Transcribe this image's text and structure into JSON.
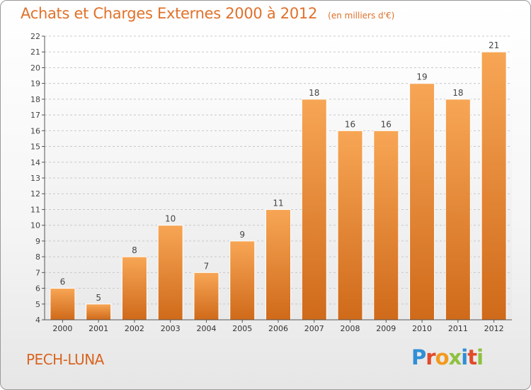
{
  "title": "Achats et Charges Externes 2000 à 2012",
  "unit": "(en milliers d'€)",
  "commune": "PECH-LUNA",
  "logo": {
    "letters": [
      "P",
      "r",
      "o",
      "x",
      "i",
      "t",
      "i"
    ],
    "colors": [
      "#2f8fd6",
      "#e24a2a",
      "#f39a1e",
      "#8ec13f",
      "#2f8fd6",
      "#e24a2a",
      "#8ec13f"
    ]
  },
  "colors": {
    "accent": "#e0712a",
    "bar_light": "#f7a655",
    "bar_dark": "#cf6a1a"
  },
  "chart_data": {
    "type": "bar",
    "categories": [
      "2000",
      "2001",
      "2002",
      "2003",
      "2004",
      "2005",
      "2006",
      "2007",
      "2008",
      "2009",
      "2010",
      "2011",
      "2012"
    ],
    "values": [
      6,
      5,
      8,
      10,
      7,
      9,
      11,
      18,
      16,
      16,
      19,
      18,
      21
    ],
    "title": "Achats et Charges Externes 2000 à 2012",
    "xlabel": "",
    "ylabel": "",
    "ylim": [
      4,
      22
    ],
    "yticks": [
      4,
      5,
      6,
      7,
      8,
      9,
      10,
      11,
      12,
      13,
      14,
      15,
      16,
      17,
      18,
      19,
      20,
      21,
      22
    ],
    "grid": "horizontal dashed",
    "legend": "none"
  }
}
